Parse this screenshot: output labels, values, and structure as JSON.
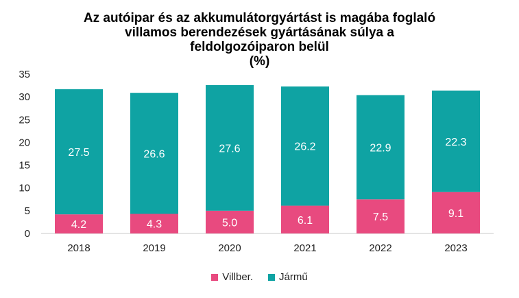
{
  "chart_data": {
    "type": "bar",
    "stacked": true,
    "title_lines": [
      "Az autóipar és az akkumulátorgyártást is magába foglaló",
      "villamos berendezések gyártásának súlya a",
      "feldolgozóiparon belül",
      "(%)"
    ],
    "categories": [
      "2018",
      "2019",
      "2020",
      "2021",
      "2022",
      "2023"
    ],
    "series": [
      {
        "name": "Villber.",
        "color": "#e84a7f",
        "values": [
          4.2,
          4.3,
          5.0,
          6.1,
          7.5,
          9.1
        ]
      },
      {
        "name": "Jármű",
        "color": "#0fa3a3",
        "values": [
          27.5,
          26.6,
          27.6,
          26.2,
          22.9,
          22.3
        ]
      }
    ],
    "ylim": [
      0,
      35
    ],
    "yticks": [
      0,
      5,
      10,
      15,
      20,
      25,
      30,
      35
    ],
    "grid": false,
    "legend_position": "bottom",
    "label_color": "#ffffff"
  }
}
